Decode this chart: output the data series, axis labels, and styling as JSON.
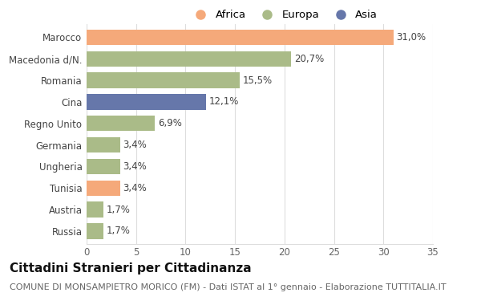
{
  "categories": [
    "Marocco",
    "Macedonia d/N.",
    "Romania",
    "Cina",
    "Regno Unito",
    "Germania",
    "Ungheria",
    "Tunisia",
    "Austria",
    "Russia"
  ],
  "values": [
    31.0,
    20.7,
    15.5,
    12.1,
    6.9,
    3.4,
    3.4,
    3.4,
    1.7,
    1.7
  ],
  "labels": [
    "31,0%",
    "20,7%",
    "15,5%",
    "12,1%",
    "6,9%",
    "3,4%",
    "3,4%",
    "3,4%",
    "1,7%",
    "1,7%"
  ],
  "continents": [
    "Africa",
    "Europa",
    "Europa",
    "Asia",
    "Europa",
    "Europa",
    "Europa",
    "Africa",
    "Europa",
    "Europa"
  ],
  "colors": {
    "Africa": "#F5A97A",
    "Europa": "#AABB88",
    "Asia": "#6677AA"
  },
  "legend_order": [
    "Africa",
    "Europa",
    "Asia"
  ],
  "xlim": [
    0,
    35
  ],
  "xticks": [
    0,
    5,
    10,
    15,
    20,
    25,
    30,
    35
  ],
  "title": "Cittadini Stranieri per Cittadinanza",
  "subtitle": "COMUNE DI MONSAMPIETRO MORICO (FM) - Dati ISTAT al 1° gennaio - Elaborazione TUTTITALIA.IT",
  "bg_color": "#ffffff",
  "bar_height": 0.72,
  "label_fontsize": 8.5,
  "title_fontsize": 11,
  "subtitle_fontsize": 8,
  "tick_fontsize": 8.5,
  "legend_fontsize": 9.5
}
